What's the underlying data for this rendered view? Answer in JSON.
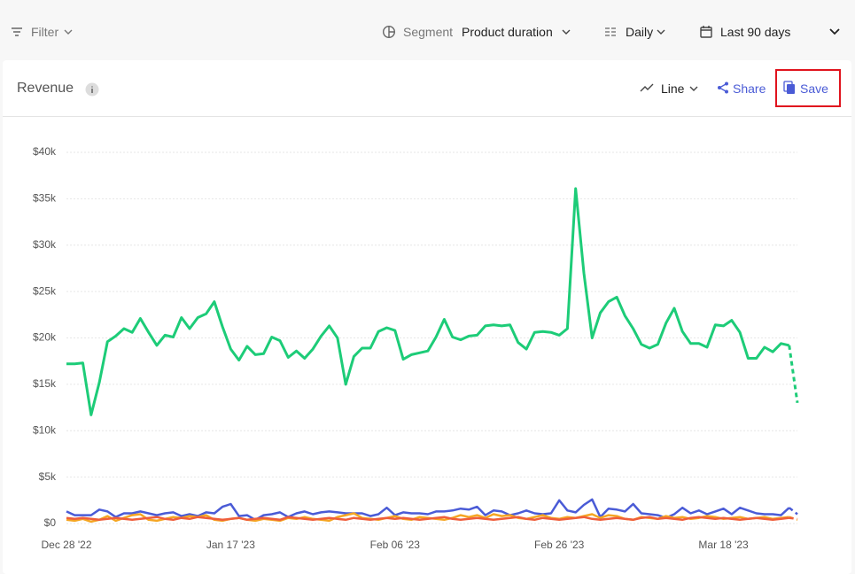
{
  "toolbar": {
    "filter": "Filter",
    "segment_label": "Segment",
    "segment_value": "Product duration",
    "interval": "Daily",
    "date_range": "Last 90 days"
  },
  "card": {
    "title": "Revenue",
    "view": "Line",
    "share": "Share",
    "save": "Save"
  },
  "chart_data": {
    "type": "line",
    "categories": [
      "Dec 28 '22",
      null,
      null,
      null,
      null,
      null,
      null,
      null,
      null,
      null,
      null,
      null,
      null,
      null,
      null,
      null,
      null,
      null,
      null,
      null,
      "Jan 17 '23",
      null,
      null,
      null,
      null,
      null,
      null,
      null,
      null,
      null,
      null,
      null,
      null,
      null,
      null,
      null,
      null,
      null,
      null,
      null,
      "Feb 06 '23",
      null,
      null,
      null,
      null,
      null,
      null,
      null,
      null,
      null,
      null,
      null,
      null,
      null,
      null,
      null,
      null,
      null,
      null,
      null,
      "Feb 26 '23",
      null,
      null,
      null,
      null,
      null,
      null,
      null,
      null,
      null,
      null,
      null,
      null,
      null,
      null,
      null,
      null,
      null,
      null,
      null,
      "Mar 18 '23",
      null,
      null,
      null,
      null,
      null,
      null,
      null,
      null,
      null
    ],
    "ylim": [
      0,
      40000
    ],
    "yticks": [
      {
        "value": 0,
        "label": "$0"
      },
      {
        "value": 5000,
        "label": "$5k"
      },
      {
        "value": 10000,
        "label": "$10k"
      },
      {
        "value": 15000,
        "label": "$15k"
      },
      {
        "value": 20000,
        "label": "$20k"
      },
      {
        "value": 25000,
        "label": "$25k"
      },
      {
        "value": 30000,
        "label": "$30k"
      },
      {
        "value": 35000,
        "label": "$35k"
      },
      {
        "value": 40000,
        "label": "$40k"
      }
    ],
    "grid": true,
    "last_segment_dashed": true,
    "series": [
      {
        "color": "#1dcc78",
        "values": [
          17200,
          17200,
          17300,
          11700,
          15200,
          19600,
          20200,
          21000,
          20600,
          22100,
          20600,
          19200,
          20300,
          20100,
          22200,
          21000,
          22200,
          22600,
          23900,
          21200,
          18800,
          17600,
          19100,
          18200,
          18300,
          20100,
          19700,
          17900,
          18600,
          17800,
          18800,
          20200,
          21300,
          20000,
          15000,
          18000,
          18900,
          18900,
          20700,
          21100,
          20800,
          17700,
          18200,
          18400,
          18600,
          20100,
          22000,
          20100,
          19800,
          20200,
          20300,
          21300,
          21400,
          21300,
          21400,
          19500,
          18800,
          20600,
          20700,
          20600,
          20300,
          21000,
          36100,
          27000,
          20000,
          22700,
          23900,
          24400,
          22400,
          21000,
          19300,
          18900,
          19300,
          21600,
          23200,
          20700,
          19400,
          19400,
          19000,
          21400,
          21300,
          21900,
          20600,
          17800,
          17800,
          19000,
          18500,
          19400,
          19200,
          13000
        ]
      },
      {
        "color": "#4a5bd6",
        "values": [
          1300,
          900,
          900,
          900,
          1500,
          1300,
          700,
          1100,
          1100,
          1300,
          1100,
          900,
          1100,
          1200,
          800,
          1000,
          800,
          1200,
          1100,
          1800,
          2100,
          800,
          900,
          400,
          900,
          1000,
          1200,
          700,
          1100,
          1300,
          1000,
          1200,
          1300,
          1200,
          1100,
          1100,
          1100,
          800,
          1000,
          1700,
          900,
          1200,
          1100,
          1100,
          1000,
          1300,
          1300,
          1400,
          1600,
          1500,
          1800,
          900,
          1400,
          1300,
          900,
          1100,
          1400,
          1100,
          1000,
          1100,
          2500,
          1400,
          1200,
          2000,
          2600,
          700,
          1600,
          1500,
          1300,
          2100,
          1100,
          1000,
          900,
          600,
          1000,
          1700,
          1100,
          1400,
          1000,
          1300,
          1600,
          1000,
          1700,
          1400,
          1100,
          1000,
          1000,
          900,
          1700,
          1000
        ]
      },
      {
        "color": "#f5a623",
        "values": [
          400,
          300,
          500,
          200,
          400,
          800,
          300,
          600,
          900,
          1000,
          400,
          300,
          500,
          700,
          600,
          800,
          700,
          900,
          400,
          300,
          500,
          600,
          400,
          300,
          500,
          400,
          300,
          600,
          500,
          700,
          500,
          400,
          300,
          700,
          900,
          1100,
          600,
          500,
          400,
          600,
          800,
          500,
          400,
          700,
          600,
          500,
          400,
          600,
          900,
          700,
          900,
          600,
          1000,
          800,
          900,
          600,
          500,
          700,
          900,
          600,
          500,
          700,
          600,
          800,
          1000,
          600,
          900,
          800,
          500,
          400,
          700,
          600,
          500,
          800,
          600,
          700,
          500,
          600,
          800,
          700,
          500,
          600,
          700,
          500,
          600,
          700,
          500,
          600,
          700,
          400
        ]
      },
      {
        "color": "#ef5e3b",
        "values": [
          600,
          500,
          600,
          500,
          400,
          500,
          600,
          500,
          400,
          500,
          600,
          700,
          500,
          400,
          600,
          500,
          700,
          600,
          500,
          400,
          500,
          600,
          400,
          500,
          600,
          500,
          400,
          700,
          600,
          500,
          400,
          500,
          600,
          500,
          400,
          600,
          500,
          400,
          500,
          600,
          500,
          600,
          500,
          400,
          500,
          600,
          700,
          500,
          400,
          500,
          600,
          500,
          400,
          500,
          600,
          700,
          500,
          400,
          600,
          500,
          400,
          500,
          600,
          700,
          500,
          400,
          500,
          600,
          500,
          400,
          600,
          700,
          500,
          600,
          500,
          400,
          600,
          700,
          600,
          500,
          600,
          500,
          400,
          500,
          600,
          500,
          400,
          500,
          600,
          500
        ]
      }
    ]
  }
}
